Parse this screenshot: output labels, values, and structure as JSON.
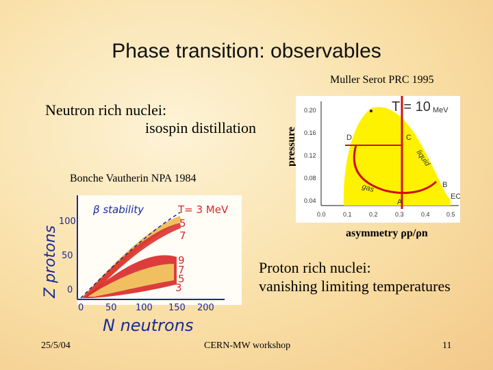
{
  "slide": {
    "title": "Phase transition: observables",
    "ref_top": "Muller Serot PRC 1995",
    "neutron_line1": "Neutron rich nuclei:",
    "neutron_line2": "isospin distillation",
    "ref_left": "Bonche Vautherin NPA 1984",
    "pressure_label": "pressure",
    "asymmetry_label": "asymmetry ρp/ρn",
    "proton_line1": "Proton rich nuclei:",
    "proton_line2": "vanishing limiting temperatures",
    "footer_date": "25/5/04",
    "footer_center": "CERN-MW workshop",
    "footer_page": "11"
  },
  "right_plot": {
    "temperature_label": "T = 10",
    "temperature_unit": "MeV",
    "y_ticks": [
      "0.20",
      "0.16",
      "0.12",
      "0.08",
      "0.04"
    ],
    "x_ticks": [
      "0.0",
      "0.1",
      "0.2",
      "0.3",
      "0.4",
      "0.5"
    ],
    "point_labels": [
      "D",
      "C",
      "B",
      "A",
      "EC"
    ],
    "curve_labels": [
      "liquid",
      "gas"
    ],
    "colors": {
      "region": "#fff200",
      "boundary": "#d01010",
      "axes": "#444444"
    }
  },
  "left_plot": {
    "y_axis_title": "Z protons",
    "x_axis_title": "N neutrons",
    "legend_title": "β stability",
    "temperature_label": "T= 3 MeV",
    "curve_values": [
      "5",
      "7",
      "9",
      "7",
      "5",
      "3"
    ],
    "y_ticks": [
      "100",
      "50",
      "0"
    ],
    "x_ticks": [
      "0",
      "50",
      "100",
      "150",
      "200"
    ],
    "colors": {
      "ink": "#1a2a9a",
      "band": "#d82828",
      "fill": "#f0c060",
      "label": "#d82828"
    }
  }
}
